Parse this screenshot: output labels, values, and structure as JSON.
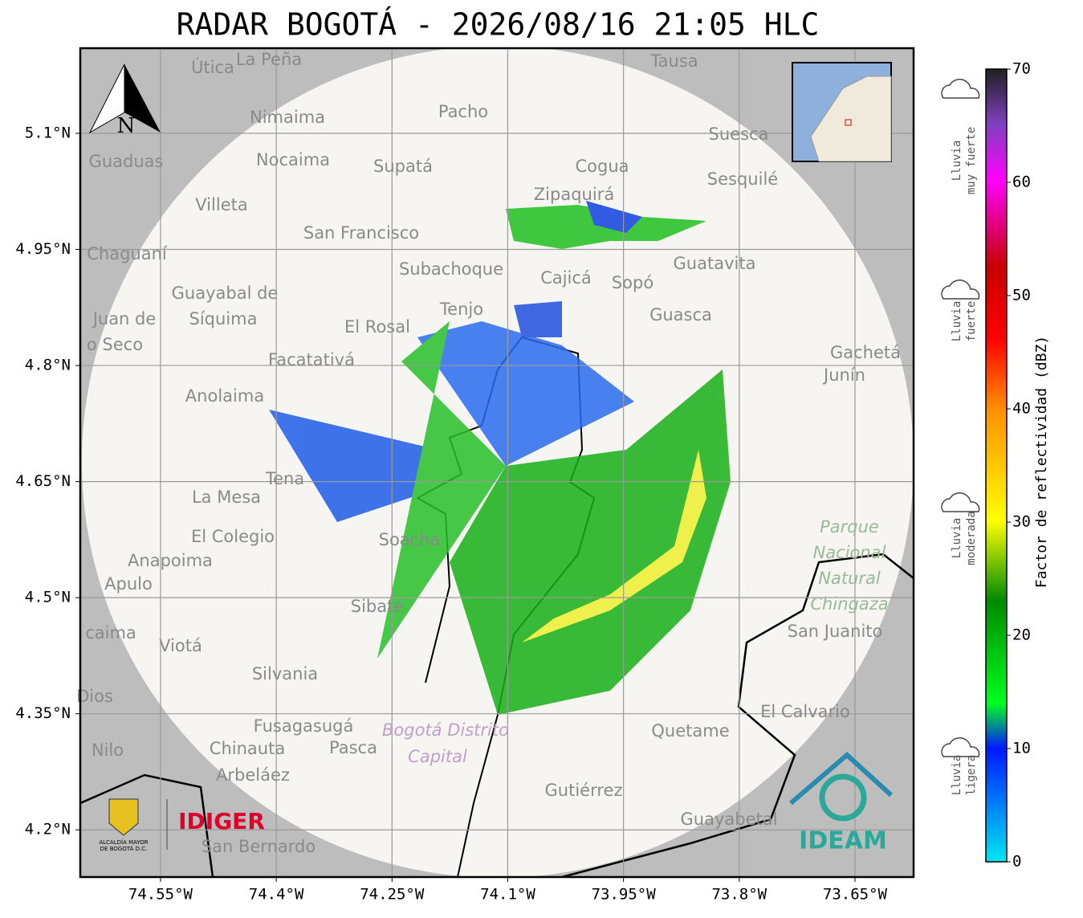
{
  "title": "RADAR BOGOTÁ - 2026/08/16 21:05 HLC",
  "map": {
    "xlim": [
      -74.654,
      -73.574
    ],
    "ylim": [
      4.139,
      5.21
    ],
    "xticks": [
      {
        "value": -74.55,
        "label": "74.55°W"
      },
      {
        "value": -74.4,
        "label": "74.4°W"
      },
      {
        "value": -74.25,
        "label": "74.25°W"
      },
      {
        "value": -74.1,
        "label": "74.1°W"
      },
      {
        "value": -73.95,
        "label": "73.95°W"
      },
      {
        "value": -73.8,
        "label": "73.8°W"
      },
      {
        "value": -73.65,
        "label": "73.65°W"
      }
    ],
    "yticks": [
      {
        "value": 5.1,
        "label": "5.1°N"
      },
      {
        "value": 4.95,
        "label": "4.95°N"
      },
      {
        "value": 4.8,
        "label": "4.8°N"
      },
      {
        "value": 4.65,
        "label": "4.65°N"
      },
      {
        "value": 4.5,
        "label": "4.5°N"
      },
      {
        "value": 4.35,
        "label": "4.35°N"
      },
      {
        "value": 4.2,
        "label": "4.2°N"
      }
    ],
    "north_label": "N",
    "places": [
      "Útica",
      "La Peña",
      "Tausa",
      "Pacho",
      "Nimaima",
      "Guaduas",
      "Nocaima",
      "Supatá",
      "Cogua",
      "Suesca",
      "Sesquilé",
      "Villeta",
      "Zipaquirá",
      "San Francisco",
      "Chaguaní",
      "Subachoque",
      "Cajicá",
      "Sopó",
      "Guatavita",
      "Guayabal de",
      "Síquima",
      "Tenjo",
      "El Rosal",
      "Guasca",
      "Juan de",
      "o Seco",
      "Facatativá",
      "Gachetá",
      "Junín",
      "Anolaima",
      "Tena",
      "La Mesa",
      "El Colegio",
      "Soacha",
      "Anapoima",
      "Apulo",
      "San Juanito",
      "Sibaté",
      "caima",
      "Viotá",
      "Silvania",
      "Dios",
      "El Calvario",
      "Fusagasugá",
      "Quetame",
      "Nilo",
      "Chinauta",
      "Pasca",
      "Arbeláez",
      "Gutiérrez",
      "Guayabetal",
      "San Bernardo"
    ],
    "park": [
      "Parque",
      "Nacional",
      "Natural",
      "Chingaza"
    ],
    "district": [
      "Bogotá Distrito",
      "Capital"
    ]
  },
  "colorbar": {
    "label": "Factor de reflectividad (dBZ)",
    "lim": [
      0,
      70
    ],
    "ticks": [
      0,
      10,
      20,
      30,
      40,
      50,
      60,
      70
    ],
    "categories": [
      [
        "Lluvia",
        "muy fuerte"
      ],
      [
        "Lluvia",
        "fuerte"
      ],
      [
        "Lluvia",
        "moderada"
      ],
      [
        "Lluvia",
        "ligera"
      ]
    ]
  },
  "logos": {
    "alcaldia": [
      "ALCALDÍA MAYOR",
      "DE BOGOTÁ D.C."
    ],
    "idiger": "IDIGER",
    "ideam": "IDEAM"
  }
}
